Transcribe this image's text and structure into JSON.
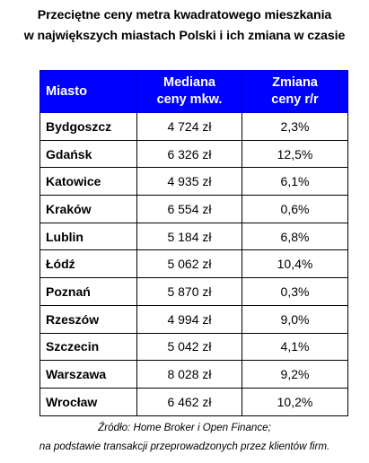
{
  "title": {
    "line1": "Przeciętne ceny metra kwadratowego mieszkania",
    "line2": "w największych miastach Polski i ich zmiana w czasie"
  },
  "table": {
    "headers": {
      "city": "Miasto",
      "median_line1": "Mediana",
      "median_line2": "ceny mkw.",
      "change_line1": "Zmiana",
      "change_line2": "ceny r/r"
    },
    "rows": [
      {
        "city": "Bydgoszcz",
        "price": "4 724 zł",
        "change": "2,3%"
      },
      {
        "city": "Gdańsk",
        "price": "6 326 zł",
        "change": "12,5%"
      },
      {
        "city": "Katowice",
        "price": "4 935 zł",
        "change": "6,1%"
      },
      {
        "city": "Kraków",
        "price": "6 554 zł",
        "change": "0,6%"
      },
      {
        "city": "Lublin",
        "price": "5 184 zł",
        "change": "6,8%"
      },
      {
        "city": "Łódź",
        "price": "5 062 zł",
        "change": "10,4%"
      },
      {
        "city": "Poznań",
        "price": "5 870 zł",
        "change": "0,3%"
      },
      {
        "city": "Rzeszów",
        "price": "4 994 zł",
        "change": "9,0%"
      },
      {
        "city": "Szczecin",
        "price": "5 042 zł",
        "change": "4,1%"
      },
      {
        "city": "Warszawa",
        "price": "8 028 zł",
        "change": "9,2%"
      },
      {
        "city": "Wrocław",
        "price": "6 462 zł",
        "change": "10,2%"
      }
    ]
  },
  "source": {
    "line1": "Źródło: Home Broker i Open Finance;",
    "line2": "na podstawie transakcji przeprowadzonych przez klientów firm."
  },
  "colors": {
    "header_background": "#0000ff",
    "header_text": "#ffffff"
  }
}
